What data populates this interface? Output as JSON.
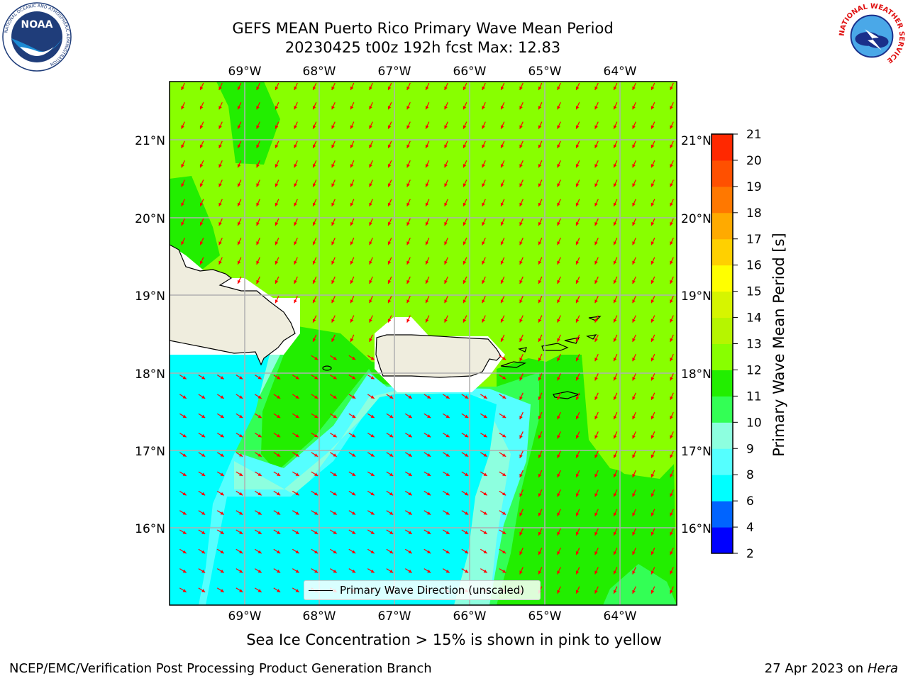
{
  "header": {
    "title_line1": "GEFS MEAN Puerto Rico Primary Wave Mean Period",
    "title_line2": "20230425 t00z 192h fcst   Max: 12.83"
  },
  "logos": {
    "noaa_text": "NOAA",
    "noaa_ring_text": "NATIONAL OCEANIC AND ATMOSPHERIC ADMINISTRATION",
    "noaa_ring_bottom": "U.S. DEPARTMENT OF COMMERCE",
    "nws_ring_text": "NATIONAL WEATHER SERVICE"
  },
  "map": {
    "lon_labels": [
      "69°W",
      "68°W",
      "67°W",
      "66°W",
      "65°W",
      "64°W"
    ],
    "lat_labels": [
      "21°N",
      "20°N",
      "19°N",
      "18°N",
      "17°N",
      "16°N"
    ],
    "land_color": "#efedde",
    "arrow_color": "#ff0000",
    "grid_color": "#b0b0b0"
  },
  "legend": {
    "label": "Primary Wave Direction (unscaled)"
  },
  "colorbar": {
    "label": "Primary Wave Mean Period [s]",
    "ticks": [
      "2",
      "4",
      "6",
      "8",
      "9",
      "10",
      "11",
      "12",
      "13",
      "14",
      "15",
      "16",
      "17",
      "18",
      "19",
      "20",
      "21"
    ],
    "colors": [
      "#0000ff",
      "#0064ff",
      "#00ffff",
      "#55ffff",
      "#8dffdf",
      "#33ff55",
      "#22ee00",
      "#88ff00",
      "#b6f500",
      "#d6f500",
      "#ffff00",
      "#ffd000",
      "#ffaa00",
      "#ff7800",
      "#ff5000",
      "#ff2800",
      "#ff0000"
    ]
  },
  "subtitle": "Sea Ice Concentration > 15% is shown in pink to yellow",
  "footer": {
    "left": "NCEP/EMC/Verification Post Processing Product Generation Branch",
    "right_prefix": "27 Apr 2023 on ",
    "right_host": "Hera"
  }
}
